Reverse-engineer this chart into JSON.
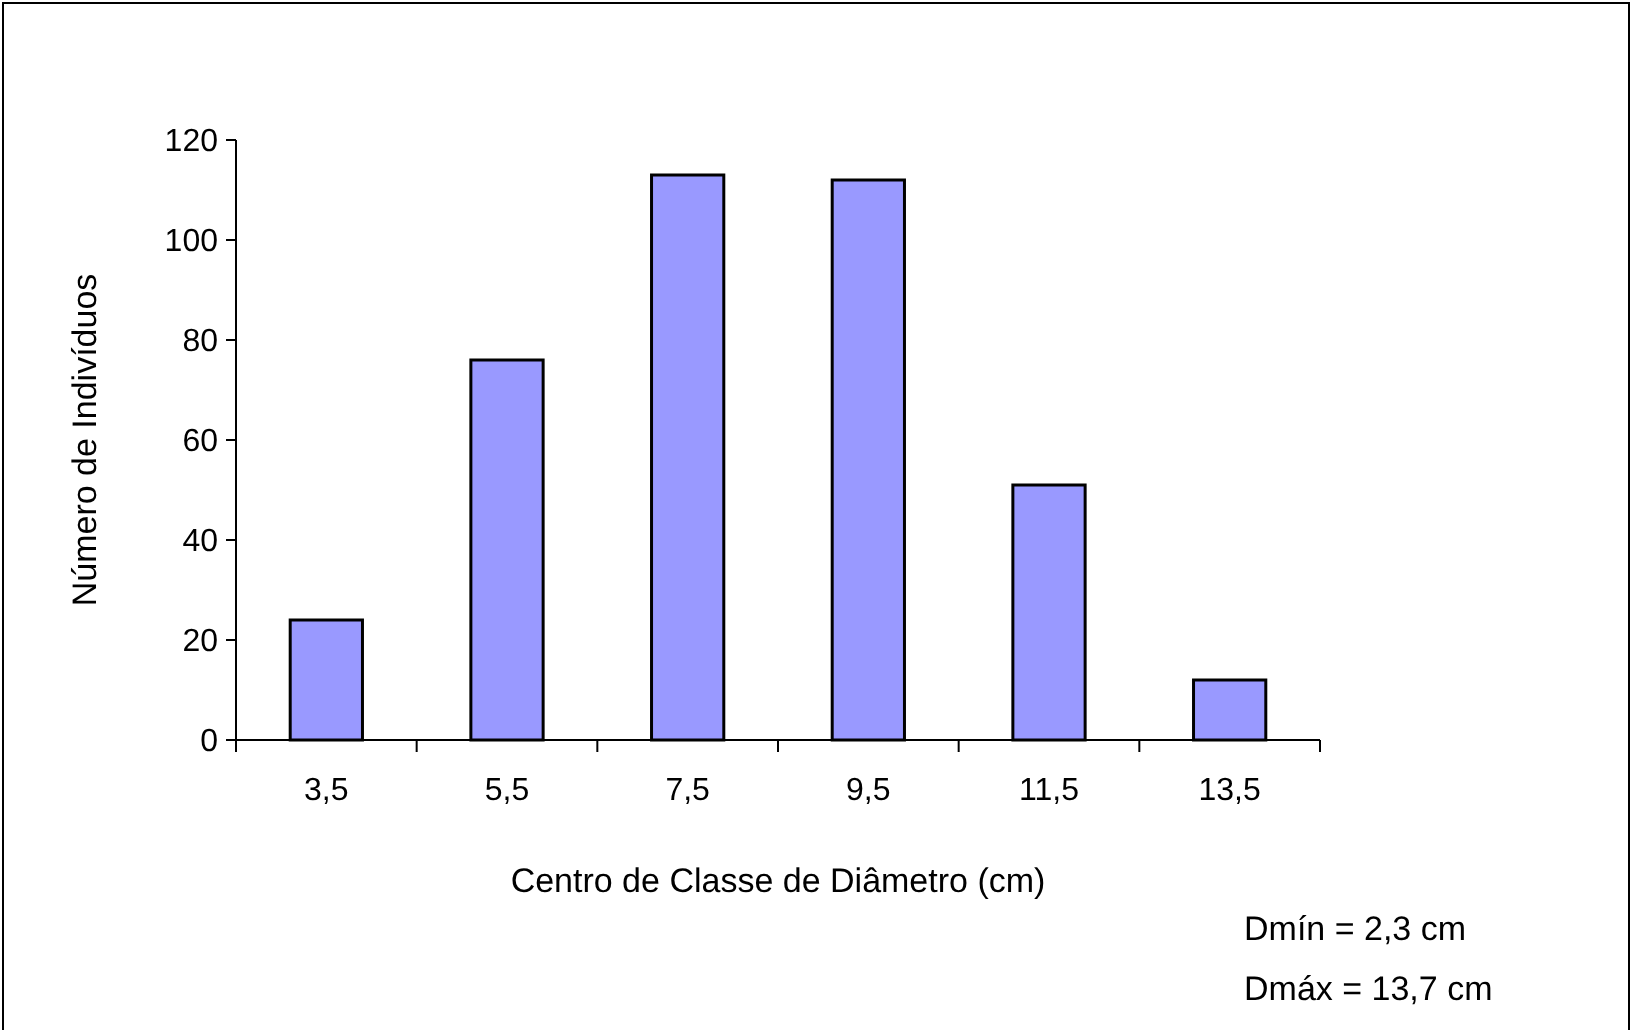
{
  "chart_data": {
    "type": "bar",
    "xlabel": "Centro de Classe de Diâmetro (cm)",
    "ylabel": "Número de Indivíduos",
    "categories": [
      "3,5",
      "5,5",
      "7,5",
      "9,5",
      "11,5",
      "13,5"
    ],
    "values": [
      24,
      76,
      113,
      112,
      51,
      12
    ],
    "color": "#9999ff",
    "ylim": [
      0,
      120
    ],
    "yticks": [
      0,
      20,
      40,
      60,
      80,
      100,
      120
    ],
    "grid": false,
    "annotations": [
      "Dmín = 2,3 cm",
      "Dmáx = 13,7 cm"
    ]
  }
}
